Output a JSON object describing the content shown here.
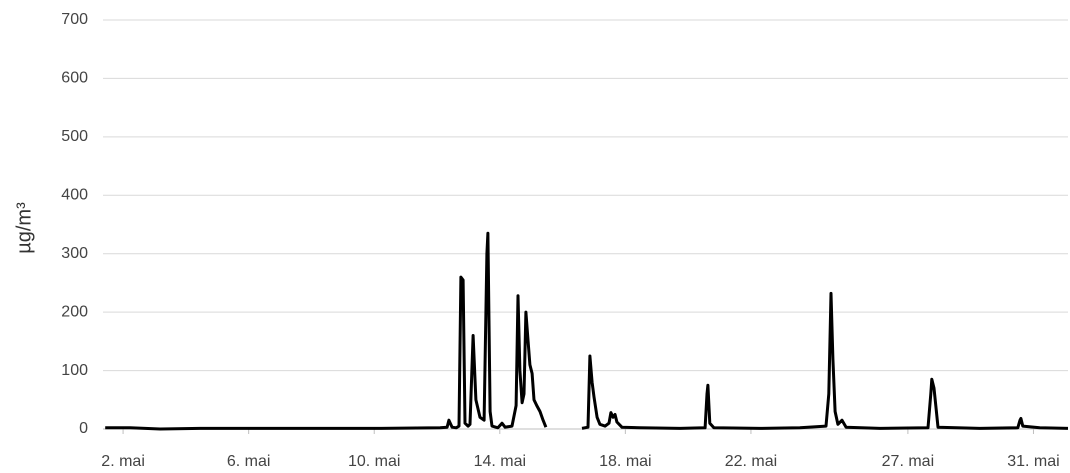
{
  "chart_data": {
    "type": "line",
    "y_label": "µg/m³",
    "x": [
      1.43,
      2.22,
      3.18,
      4.45,
      6.36,
      8.27,
      10.18,
      12.1,
      12.32,
      12.38,
      12.48,
      12.61,
      12.7,
      12.76,
      12.83,
      12.89,
      12.99,
      13.05,
      13.15,
      13.24,
      13.37,
      13.5,
      13.59,
      13.62,
      13.69,
      13.75,
      13.94,
      14.07,
      14.17,
      14.39,
      14.52,
      14.58,
      14.64,
      14.71,
      14.77,
      14.83,
      14.9,
      14.96,
      15.03,
      15.09,
      15.18,
      15.28,
      15.38,
      15.47,
      16.0,
      16.62,
      16.81,
      16.87,
      16.94,
      17.0,
      17.1,
      17.19,
      17.35,
      17.48,
      17.54,
      17.61,
      17.67,
      17.73,
      17.89,
      18.46,
      19.74,
      20.54,
      20.6,
      20.63,
      20.69,
      20.82,
      22.29,
      23.56,
      24.39,
      24.48,
      24.55,
      24.61,
      24.68,
      24.77,
      24.9,
      25.03,
      26.11,
      27.64,
      27.73,
      27.76,
      27.83,
      27.89,
      27.96,
      29.29,
      30.5,
      30.57,
      30.6,
      30.66,
      31.2,
      32.1
    ],
    "series": [
      {
        "color": "#000000",
        "values": [
          2,
          2,
          0,
          1,
          1,
          1,
          1,
          2,
          3,
          15,
          3,
          2,
          5,
          260,
          255,
          10,
          5,
          8,
          160,
          50,
          20,
          15,
          300,
          335,
          30,
          5,
          2,
          10,
          3,
          5,
          40,
          228,
          100,
          45,
          60,
          200,
          150,
          110,
          95,
          50,
          40,
          30,
          15,
          3,
          null,
          1,
          3,
          125,
          80,
          55,
          20,
          8,
          5,
          10,
          28,
          20,
          25,
          12,
          3,
          2,
          1,
          2,
          60,
          75,
          10,
          2,
          1,
          2,
          5,
          60,
          232,
          120,
          30,
          8,
          15,
          3,
          1,
          2,
          60,
          85,
          70,
          40,
          3,
          1,
          2,
          15,
          18,
          5,
          2,
          1
        ]
      }
    ],
    "xlim": [
      1.36,
      32.1
    ],
    "xticks": [
      {
        "value": 2,
        "label": "2. mai"
      },
      {
        "value": 6,
        "label": "6. mai"
      },
      {
        "value": 10,
        "label": "10. mai"
      },
      {
        "value": 14,
        "label": "14. mai"
      },
      {
        "value": 18,
        "label": "18. mai"
      },
      {
        "value": 22,
        "label": "22. mai"
      },
      {
        "value": 27,
        "label": "27. mai"
      },
      {
        "value": 31,
        "label": "31. mai"
      }
    ],
    "ylim": [
      0,
      700
    ],
    "yticks": [
      0,
      100,
      200,
      300,
      400,
      500,
      600,
      700
    ],
    "grid": true
  }
}
